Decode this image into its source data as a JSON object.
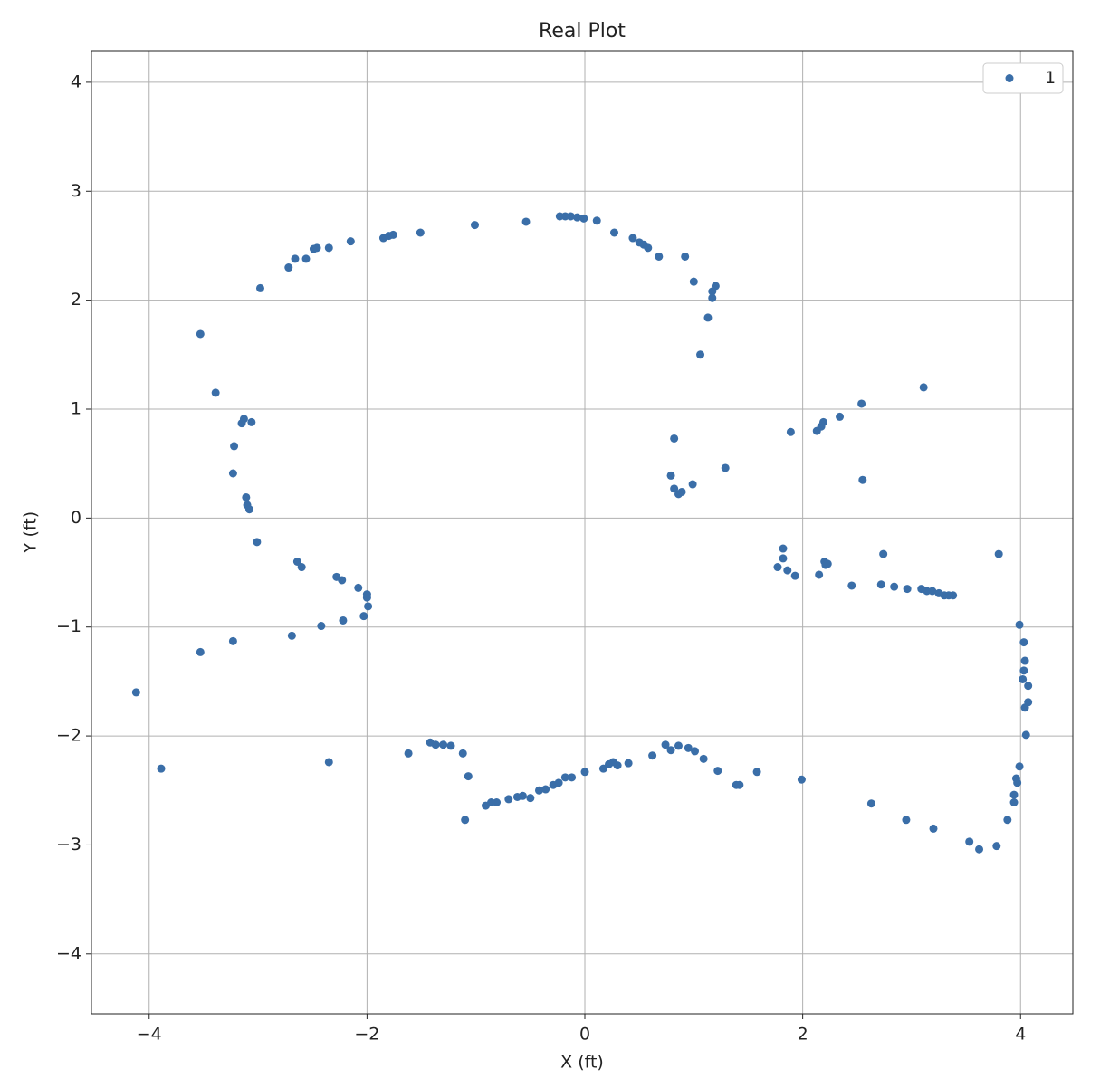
{
  "chart_data": {
    "type": "scatter",
    "title": "Real Plot",
    "x_label": "X (ft)",
    "y_label": "Y (ft)",
    "xlim": [
      -4.53,
      4.48
    ],
    "ylim": [
      -4.55,
      4.29
    ],
    "xticks": [
      {
        "value": -4,
        "label": "−4"
      },
      {
        "value": -2,
        "label": "−2"
      },
      0,
      2,
      4
    ],
    "yticks": [
      {
        "value": -4,
        "label": "−4"
      },
      {
        "value": -3,
        "label": "−3"
      },
      {
        "value": -2,
        "label": "−2"
      },
      {
        "value": -1,
        "label": "−1"
      },
      0,
      1,
      2,
      3,
      4
    ],
    "grid": true,
    "legend": "upper right",
    "series": [
      {
        "name": "1",
        "color": "#3a6ea8",
        "x": [
          -2.98,
          -2.72,
          -2.66,
          -2.56,
          -2.49,
          -2.46,
          -2.35,
          -2.15,
          -1.85,
          -1.8,
          -1.76,
          -1.51,
          -1.01,
          -0.54,
          -0.23,
          -0.18,
          -0.13,
          -0.07,
          -0.01,
          0.11,
          0.27,
          0.44,
          0.5,
          0.54,
          0.58,
          0.68,
          0.92,
          1.0,
          1.2,
          1.17,
          1.17,
          1.13,
          1.06,
          -3.53,
          -3.39,
          -3.15,
          -3.13,
          -3.06,
          -3.22,
          -3.23,
          -3.11,
          -3.1,
          -3.08,
          -3.01,
          -2.64,
          -2.6,
          -2.28,
          -2.23,
          -2.08,
          -2.0,
          -2.0,
          -1.99,
          -2.03,
          -2.22,
          -2.42,
          -2.69,
          -3.23,
          -3.53,
          -4.12,
          -3.89,
          -2.35,
          -1.62,
          -1.42,
          -1.37,
          -1.3,
          -1.23,
          -1.12,
          -1.07,
          -1.1,
          -0.91,
          -0.86,
          -0.81,
          -0.7,
          -0.62,
          -0.57,
          -0.5,
          -0.42,
          -0.36,
          -0.29,
          -0.24,
          -0.18,
          -0.12,
          0.0,
          0.17,
          0.22,
          0.26,
          0.3,
          0.4,
          0.62,
          0.74,
          0.79,
          0.86,
          0.95,
          1.01,
          1.09,
          1.22,
          1.39,
          1.42,
          1.58,
          1.99,
          2.63,
          2.95,
          3.2,
          3.53,
          3.62,
          3.78,
          3.88,
          3.94,
          3.94,
          3.96,
          3.97,
          3.99,
          3.99,
          4.03,
          4.04,
          4.03,
          4.02,
          4.07,
          4.07,
          4.04,
          4.05,
          0.82,
          0.79,
          0.82,
          0.86,
          0.89,
          0.99,
          1.29,
          1.89,
          2.13,
          2.17,
          2.19,
          2.34,
          2.54,
          3.11,
          2.55,
          1.82,
          1.82,
          1.77,
          1.86,
          1.93,
          2.15,
          2.2,
          2.23,
          2.21,
          2.45,
          2.74,
          3.8,
          2.72,
          2.84,
          2.96,
          3.09,
          3.14,
          3.19,
          3.25,
          3.3,
          3.34,
          3.38
        ],
        "values": [
          2.11,
          2.3,
          2.38,
          2.38,
          2.47,
          2.48,
          2.48,
          2.54,
          2.57,
          2.59,
          2.6,
          2.62,
          2.69,
          2.72,
          2.77,
          2.77,
          2.77,
          2.76,
          2.75,
          2.73,
          2.62,
          2.57,
          2.53,
          2.51,
          2.48,
          2.4,
          2.4,
          2.17,
          2.13,
          2.08,
          2.02,
          1.84,
          1.5,
          1.69,
          1.15,
          0.87,
          0.91,
          0.88,
          0.66,
          0.41,
          0.19,
          0.12,
          0.08,
          -0.22,
          -0.4,
          -0.45,
          -0.54,
          -0.57,
          -0.64,
          -0.7,
          -0.73,
          -0.81,
          -0.9,
          -0.94,
          -0.99,
          -1.08,
          -1.13,
          -1.23,
          -1.6,
          -2.3,
          -2.24,
          -2.16,
          -2.06,
          -2.08,
          -2.08,
          -2.09,
          -2.16,
          -2.37,
          -2.77,
          -2.64,
          -2.61,
          -2.61,
          -2.58,
          -2.56,
          -2.55,
          -2.57,
          -2.5,
          -2.49,
          -2.45,
          -2.43,
          -2.38,
          -2.38,
          -2.33,
          -2.3,
          -2.26,
          -2.24,
          -2.27,
          -2.25,
          -2.18,
          -2.08,
          -2.13,
          -2.09,
          -2.11,
          -2.14,
          -2.21,
          -2.32,
          -2.45,
          -2.45,
          -2.33,
          -2.4,
          -2.62,
          -2.77,
          -2.85,
          -2.97,
          -3.04,
          -3.01,
          -2.77,
          -2.61,
          -2.54,
          -2.39,
          -2.43,
          -2.28,
          -0.98,
          -1.14,
          -1.31,
          -1.4,
          -1.48,
          -1.54,
          -1.69,
          -1.74,
          -1.99,
          0.73,
          0.39,
          0.27,
          0.22,
          0.24,
          0.31,
          0.46,
          0.79,
          0.8,
          0.84,
          0.88,
          0.93,
          1.05,
          1.2,
          0.35,
          -0.28,
          -0.37,
          -0.45,
          -0.48,
          -0.53,
          -0.52,
          -0.4,
          -0.42,
          -0.43,
          -0.62,
          -0.33,
          -0.33,
          -0.61,
          -0.63,
          -0.65,
          -0.65,
          -0.67,
          -0.67,
          -0.69,
          -0.71,
          -0.71,
          -0.71
        ]
      }
    ]
  }
}
